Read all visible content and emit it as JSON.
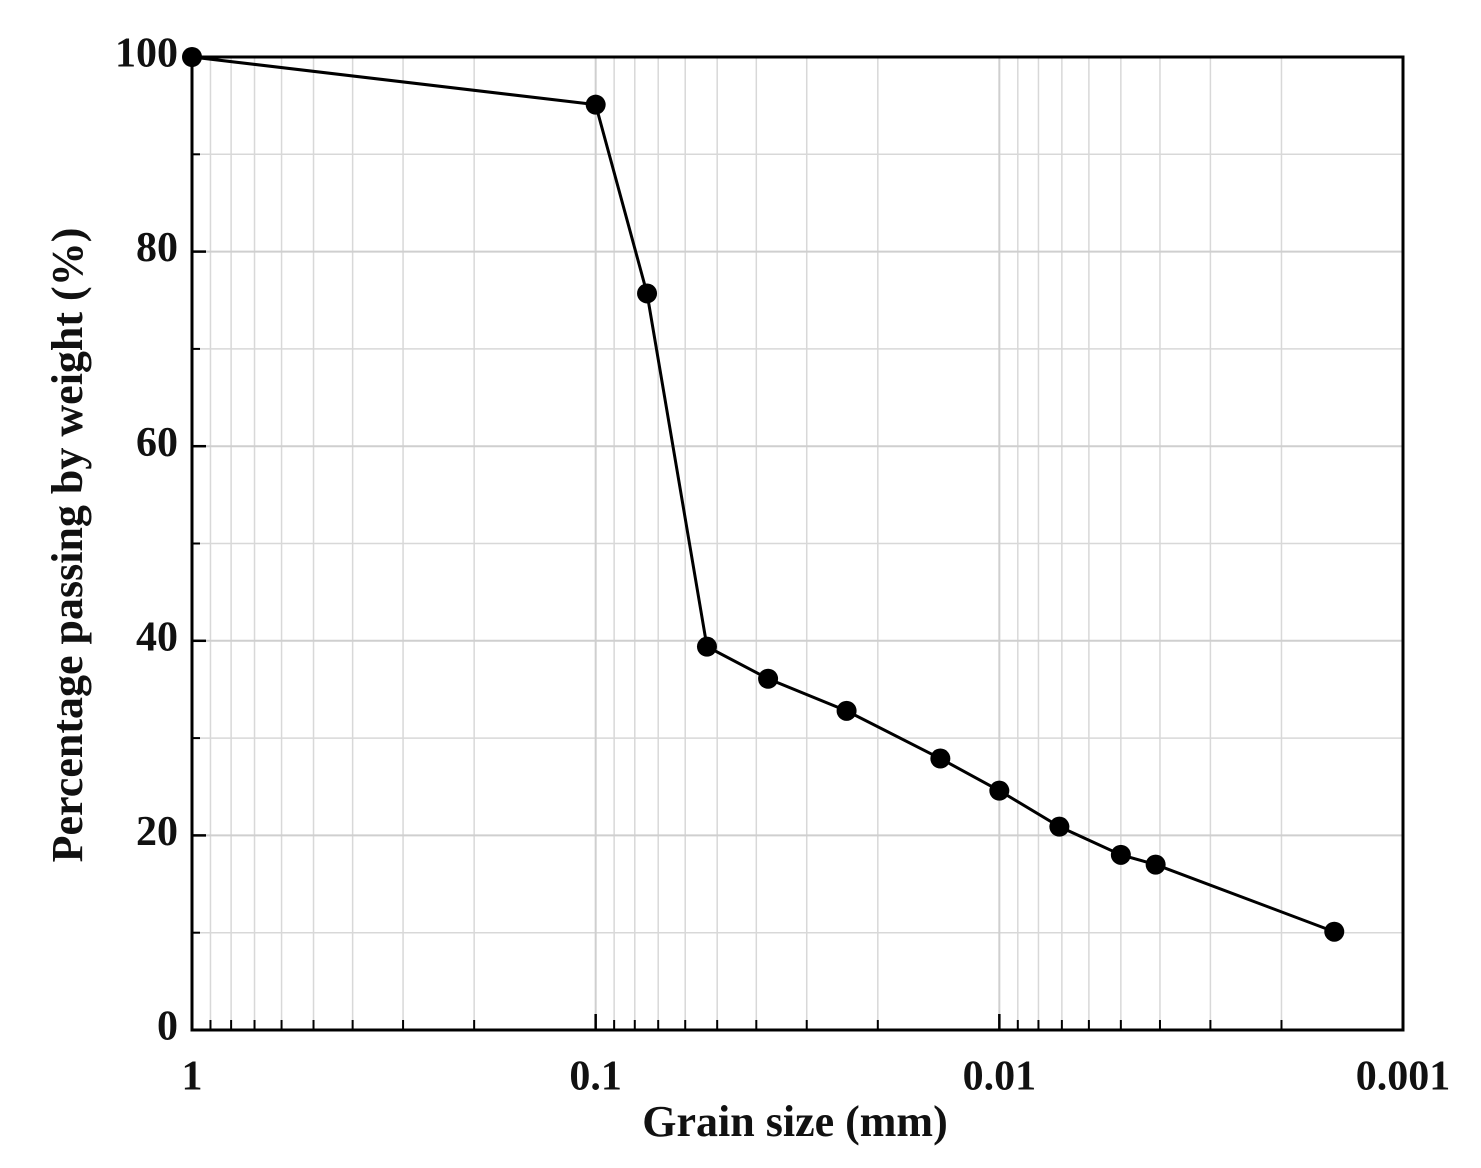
{
  "chart_data": {
    "type": "line",
    "x_label": "Grain size (mm)",
    "y_label": "Percentage passing by weight (%)",
    "x": [
      1,
      0.1,
      0.0746,
      0.053,
      0.0374,
      0.0239,
      0.014,
      0.01,
      0.0071,
      0.005,
      0.0041,
      0.00148
    ],
    "values": [
      100,
      95.1,
      75.7,
      39.4,
      36.1,
      32.8,
      27.9,
      24.6,
      20.9,
      18.0,
      17.0,
      10.1
    ],
    "color": "#000000",
    "xscale": "log",
    "xlim": [
      1,
      0.001
    ],
    "xticks": [
      1,
      0.1,
      0.01,
      0.001
    ],
    "ylim": [
      0,
      100
    ],
    "yticks": [
      0,
      20,
      40,
      60,
      80,
      100
    ],
    "grid": true,
    "minor_grid": true
  }
}
